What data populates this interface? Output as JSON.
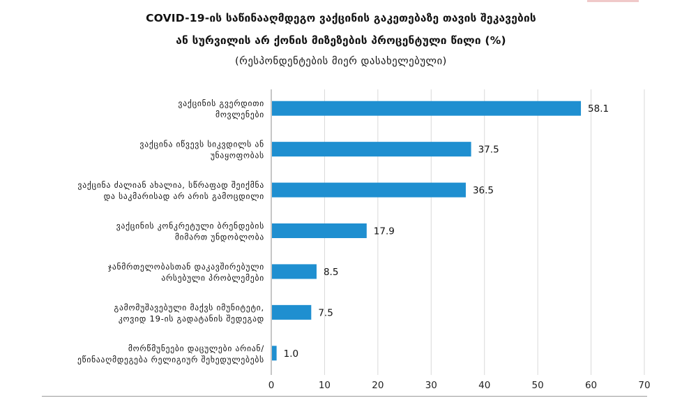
{
  "title": {
    "line1": "COVID-19-ის საწინააღმდეგო ვაქცინის გაკეთებაზე თავის შეკავების",
    "line2": "ან სურვილის არ ქონის მიზეზების პროცენტული წილი (%)",
    "subtitle": "(რესპონდენტების მიერ დასახელებული)"
  },
  "chart_data": {
    "type": "bar",
    "orientation": "horizontal",
    "title": "COVID-19-ის საწინააღმდეგო ვაქცინის გაკეთებაზე თავის შეკავების ან სურვილის არ ქონის მიზეზების პროცენტული წილი (%)",
    "subtitle": "(რესპონდენტების მიერ დასახელებული)",
    "categories": [
      [
        "ვაქცინის გვერდითი",
        "მოვლენები"
      ],
      [
        "ვაქცინა იწვევს სიკვდილს ან",
        "უნაყოფობას"
      ],
      [
        "ვაქცინა ძალიან ახალია, სწრაფად შეიქმნა",
        "და საკმარისად არ არის გამოცდილი"
      ],
      [
        "ვაქცინის კონკრეტული ბრენდების",
        "მიმართ უნდობლობა"
      ],
      [
        "ჯანმრთელობასთან დაკავშირებული",
        "არსებული პრობლემები"
      ],
      [
        "გამომუშავებული მაქვს იმუნიტეტი,",
        "კოვიდ 19-ის გადატანის შედეგად"
      ],
      [
        "მორწმუნეები დაცულები არიან/",
        "ეწინააღმდეგება რელიგიურ შეხედულებებს"
      ]
    ],
    "values": [
      58.1,
      37.5,
      36.5,
      17.9,
      8.5,
      7.5,
      1.0
    ],
    "value_labels": [
      "58.1",
      "37.5",
      "36.5",
      "17.9",
      "8.5",
      "7.5",
      "1.0"
    ],
    "xlim": [
      0,
      70
    ],
    "xticks": [
      0,
      10,
      20,
      30,
      40,
      50,
      60,
      70
    ],
    "grid": "vertical",
    "colors": {
      "bar": "#1f8fd0",
      "grid": "#d9d9d9",
      "axis": "#8c8c8c"
    }
  }
}
